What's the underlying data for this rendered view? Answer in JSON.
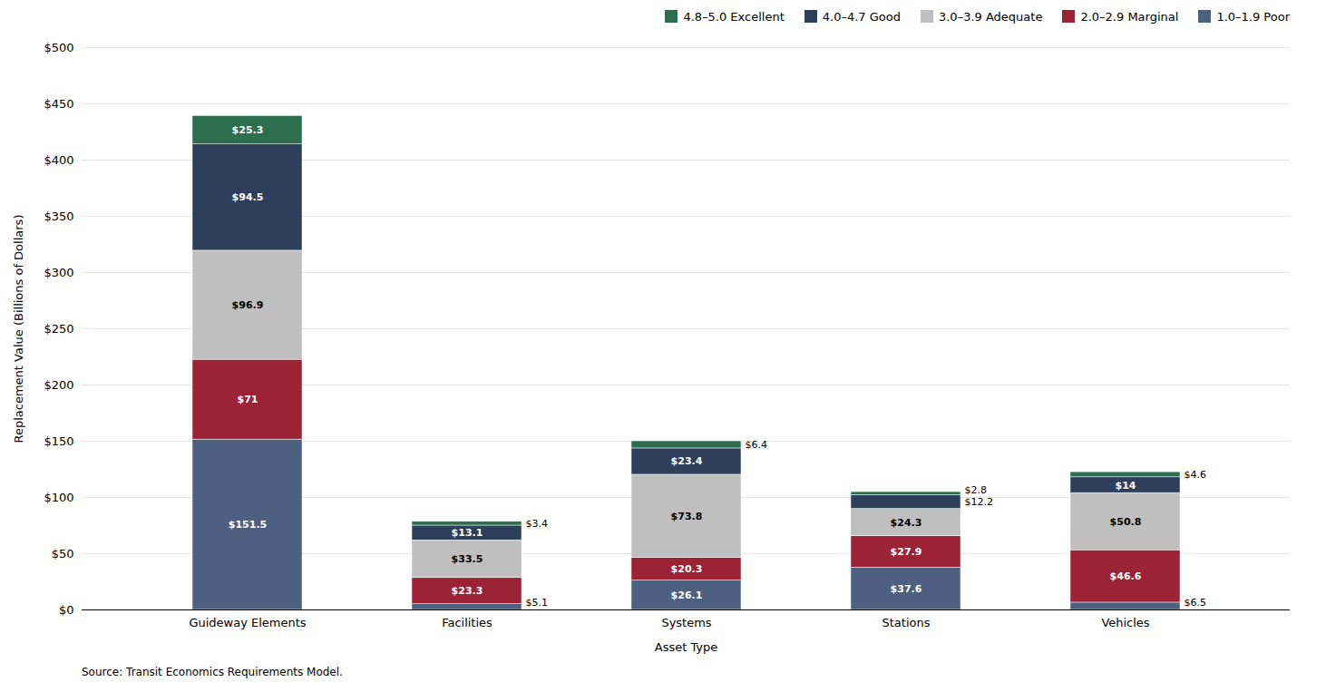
{
  "chart_data": {
    "type": "bar",
    "stacked": true,
    "xlabel": "Asset Type",
    "ylabel": "Replacement Value (Billions of Dollars)",
    "caption": "Source: Transit Economics Requirements Model.",
    "categories": [
      "Guideway Elements",
      "Facilities",
      "Systems",
      "Stations",
      "Vehicles"
    ],
    "series": [
      {
        "name": "1.0–1.9 Poor",
        "color": "#4d6080",
        "values": [
          151.5,
          5.1,
          26.1,
          37.6,
          6.5
        ],
        "value_labels": [
          "$151.5",
          "$5.1",
          "$26.1",
          "$37.6",
          "$6.5"
        ]
      },
      {
        "name": "2.0–2.9 Marginal",
        "color": "#9b2335",
        "values": [
          71.0,
          23.3,
          20.3,
          27.9,
          46.6
        ],
        "value_labels": [
          "$71",
          "$23.3",
          "$20.3",
          "$27.9",
          "$46.6"
        ]
      },
      {
        "name": "3.0–3.9 Adequate",
        "color": "#c0bfbf",
        "values": [
          96.9,
          33.5,
          73.8,
          24.3,
          50.8
        ],
        "value_labels": [
          "$96.9",
          "$33.5",
          "$73.8",
          "$24.3",
          "$50.8"
        ]
      },
      {
        "name": "4.0–4.7 Good",
        "color": "#2e3f5c",
        "values": [
          94.5,
          13.1,
          23.4,
          12.2,
          14.0
        ],
        "value_labels": [
          "$94.5",
          "$13.1",
          "$23.4",
          "$12.2",
          "$14"
        ]
      },
      {
        "name": "4.8–5.0 Excellent",
        "color": "#2d6e4e",
        "values": [
          25.3,
          3.4,
          6.4,
          2.8,
          4.6
        ],
        "value_labels": [
          "$25.3",
          "$3.4",
          "$6.4",
          "$2.8",
          "$4.6"
        ]
      }
    ],
    "ylim": [
      0,
      500
    ],
    "yticks": [
      {
        "value": 0,
        "label": "$0"
      },
      {
        "value": 50,
        "label": "$50"
      },
      {
        "value": 100,
        "label": "$100"
      },
      {
        "value": 150,
        "label": "$150"
      },
      {
        "value": 200,
        "label": "$200"
      },
      {
        "value": 250,
        "label": "$250"
      },
      {
        "value": 300,
        "label": "$300"
      },
      {
        "value": 350,
        "label": "$350"
      },
      {
        "value": 400,
        "label": "$400"
      },
      {
        "value": 450,
        "label": "$450"
      },
      {
        "value": 500,
        "label": "$500"
      }
    ],
    "grid": true,
    "legend": "upper right",
    "data_labels": true
  }
}
